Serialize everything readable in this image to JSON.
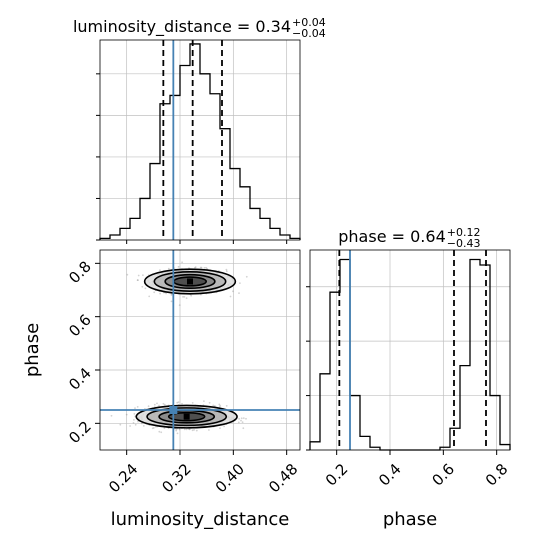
{
  "chart_data": {
    "type": "corner",
    "colors": {
      "truth": "#4682b4",
      "hist": "#000000",
      "grid": "#c0c0c0",
      "scatter": "#808080"
    },
    "titles": {
      "luminosity_distance": {
        "main": "luminosity_distance = 0.34",
        "sup": "+0.04",
        "sub": "−0.04"
      },
      "phase": {
        "main": "phase = 0.64",
        "sup": "+0.12",
        "sub": "−0.43"
      }
    },
    "xlabel_left": "luminosity_distance",
    "xlabel_right": "phase",
    "ylabel": "phase",
    "luminosity_distance": {
      "range": [
        0.2,
        0.5
      ],
      "ticks": [
        0.24,
        0.32,
        0.4,
        0.48
      ],
      "tick_labels": [
        "0.24",
        "0.32",
        "0.40",
        "0.48"
      ],
      "quantiles": [
        0.295,
        0.339,
        0.383
      ],
      "truth": 0.31,
      "hist": {
        "edges": [
          0.2,
          0.215,
          0.23,
          0.245,
          0.26,
          0.275,
          0.29,
          0.305,
          0.32,
          0.335,
          0.35,
          0.365,
          0.38,
          0.395,
          0.41,
          0.425,
          0.44,
          0.455,
          0.47,
          0.485,
          0.5
        ],
        "counts": [
          1,
          3,
          7,
          13,
          25,
          46,
          82,
          87,
          105,
          118,
          100,
          88,
          67,
          43,
          32,
          19,
          13,
          7,
          3,
          1
        ]
      }
    },
    "phase": {
      "range": [
        0.1,
        0.85
      ],
      "ticks": [
        0.2,
        0.4,
        0.6,
        0.8
      ],
      "tick_labels": [
        "0.2",
        "0.4",
        "0.6",
        "0.8"
      ],
      "quantiles": [
        0.21,
        0.64,
        0.76
      ],
      "truth": 0.25,
      "hist": {
        "edges": [
          0.1,
          0.1375,
          0.175,
          0.2125,
          0.25,
          0.2875,
          0.325,
          0.3625,
          0.4,
          0.4375,
          0.475,
          0.5125,
          0.55,
          0.5875,
          0.625,
          0.6625,
          0.7,
          0.7375,
          0.775,
          0.8125,
          0.85
        ],
        "counts": [
          3,
          28,
          58,
          70,
          20,
          5,
          1,
          0,
          0,
          0,
          0,
          0,
          0,
          1,
          8,
          31,
          70,
          68,
          20,
          2
        ]
      }
    },
    "joint": {
      "truth_point": [
        0.31,
        0.25
      ],
      "modes": [
        {
          "center": [
            0.335,
            0.732
          ],
          "sigma": [
            0.027,
            0.022
          ],
          "weight": 0.45
        },
        {
          "center": [
            0.33,
            0.225
          ],
          "sigma": [
            0.03,
            0.02
          ],
          "weight": 0.55
        }
      ],
      "contour_levels": [
        0.75,
        1.15,
        1.65,
        2.1
      ]
    }
  }
}
